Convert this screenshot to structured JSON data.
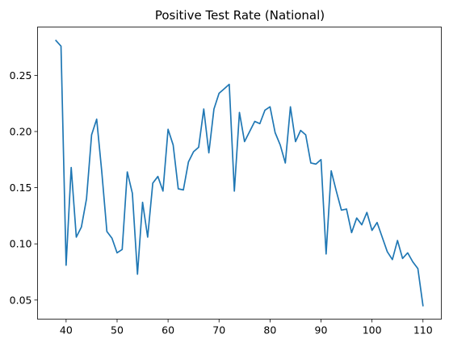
{
  "chart_data": {
    "type": "line",
    "title": "Positive Test Rate (National)",
    "xlabel": "",
    "ylabel": "",
    "xlim": [
      34.4,
      113.6
    ],
    "ylim": [
      0.033,
      0.293
    ],
    "xticks": [
      40,
      50,
      60,
      70,
      80,
      90,
      100,
      110
    ],
    "yticks": [
      0.05,
      0.1,
      0.15,
      0.2,
      0.25
    ],
    "ytick_labels": [
      "0.05",
      "0.10",
      "0.15",
      "0.20",
      "0.25"
    ],
    "grid": false,
    "line_color": "#1f77b4",
    "series": [
      {
        "x": [
          38,
          39,
          40,
          41,
          42,
          43,
          44,
          45,
          46,
          47,
          48,
          49,
          50,
          51,
          52,
          53,
          54,
          55,
          56,
          57,
          58,
          59,
          60,
          61,
          62,
          63,
          64,
          65,
          66,
          67,
          68,
          69,
          70,
          71,
          72,
          73,
          74,
          75,
          76,
          77,
          78,
          79,
          80,
          81,
          82,
          83,
          84,
          85,
          86,
          87,
          88,
          89,
          90,
          91,
          92,
          93,
          94,
          95,
          96,
          97,
          98,
          99,
          100,
          101,
          102,
          103,
          104,
          105,
          106,
          107,
          108,
          109,
          110
        ],
        "y": [
          0.281,
          0.276,
          0.081,
          0.168,
          0.106,
          0.115,
          0.14,
          0.197,
          0.211,
          0.164,
          0.111,
          0.105,
          0.092,
          0.095,
          0.164,
          0.145,
          0.073,
          0.137,
          0.106,
          0.154,
          0.16,
          0.147,
          0.202,
          0.188,
          0.149,
          0.148,
          0.173,
          0.182,
          0.186,
          0.22,
          0.181,
          0.22,
          0.234,
          0.238,
          0.242,
          0.147,
          0.217,
          0.191,
          0.2,
          0.209,
          0.207,
          0.219,
          0.222,
          0.199,
          0.188,
          0.172,
          0.222,
          0.191,
          0.201,
          0.197,
          0.172,
          0.171,
          0.175,
          0.091,
          0.165,
          0.147,
          0.13,
          0.131,
          0.11,
          0.123,
          0.117,
          0.128,
          0.112,
          0.119,
          0.106,
          0.093,
          0.086,
          0.103,
          0.087,
          0.092,
          0.084,
          0.078,
          0.045
        ]
      }
    ]
  }
}
